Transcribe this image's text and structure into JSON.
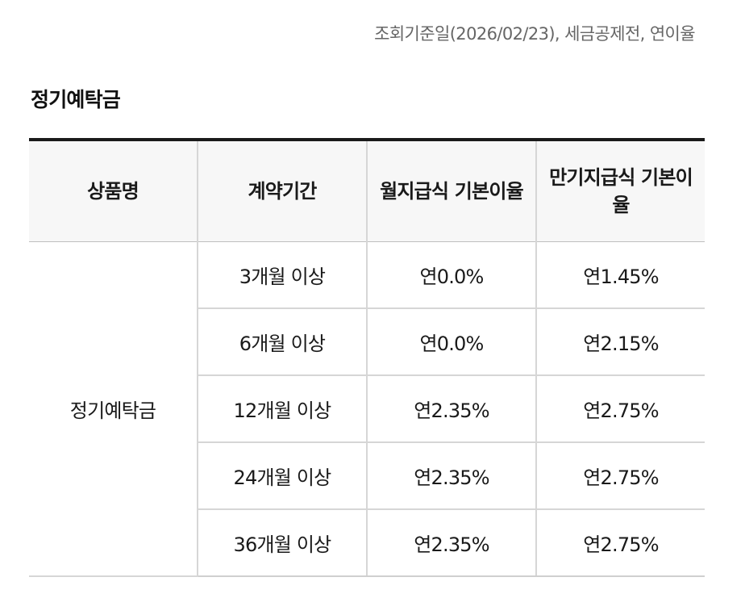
{
  "reference_note": "조회기준일(2026/02/23), 세금공제전, 연이율",
  "section_title": "정기예탁금",
  "table": {
    "headers": [
      "상품명",
      "계약기간",
      "월지급식 기본이율",
      "만기지급식 기본이율"
    ],
    "product_name": "정기예탁금",
    "rows": [
      {
        "period": "3개월 이상",
        "monthly_rate": "연0.0%",
        "maturity_rate": "연1.45%"
      },
      {
        "period": "6개월 이상",
        "monthly_rate": "연0.0%",
        "maturity_rate": "연2.15%"
      },
      {
        "period": "12개월 이상",
        "monthly_rate": "연2.35%",
        "maturity_rate": "연2.75%"
      },
      {
        "period": "24개월 이상",
        "monthly_rate": "연2.35%",
        "maturity_rate": "연2.75%"
      },
      {
        "period": "36개월 이상",
        "monthly_rate": "연2.35%",
        "maturity_rate": "연2.75%"
      }
    ]
  }
}
